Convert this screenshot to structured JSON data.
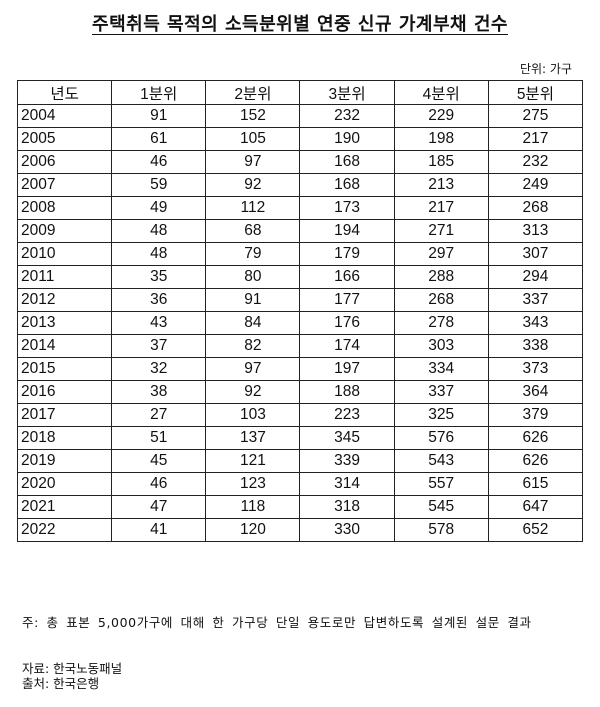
{
  "title": "주택취득 목적의 소득분위별 연중 신규 가계부채 건수",
  "unit": "단위: 가구",
  "table": {
    "headers": [
      "년도",
      "1분위",
      "2분위",
      "3분위",
      "4분위",
      "5분위"
    ],
    "rows": [
      [
        "2004",
        "91",
        "152",
        "232",
        "229",
        "275"
      ],
      [
        "2005",
        "61",
        "105",
        "190",
        "198",
        "217"
      ],
      [
        "2006",
        "46",
        "97",
        "168",
        "185",
        "232"
      ],
      [
        "2007",
        "59",
        "92",
        "168",
        "213",
        "249"
      ],
      [
        "2008",
        "49",
        "112",
        "173",
        "217",
        "268"
      ],
      [
        "2009",
        "48",
        "68",
        "194",
        "271",
        "313"
      ],
      [
        "2010",
        "48",
        "79",
        "179",
        "297",
        "307"
      ],
      [
        "2011",
        "35",
        "80",
        "166",
        "288",
        "294"
      ],
      [
        "2012",
        "36",
        "91",
        "177",
        "268",
        "337"
      ],
      [
        "2013",
        "43",
        "84",
        "176",
        "278",
        "343"
      ],
      [
        "2014",
        "37",
        "82",
        "174",
        "303",
        "338"
      ],
      [
        "2015",
        "32",
        "97",
        "197",
        "334",
        "373"
      ],
      [
        "2016",
        "38",
        "92",
        "188",
        "337",
        "364"
      ],
      [
        "2017",
        "27",
        "103",
        "223",
        "325",
        "379"
      ],
      [
        "2018",
        "51",
        "137",
        "345",
        "576",
        "626"
      ],
      [
        "2019",
        "45",
        "121",
        "339",
        "543",
        "626"
      ],
      [
        "2020",
        "46",
        "123",
        "314",
        "557",
        "615"
      ],
      [
        "2021",
        "47",
        "118",
        "318",
        "545",
        "647"
      ],
      [
        "2022",
        "41",
        "120",
        "330",
        "578",
        "652"
      ]
    ]
  },
  "note": "주: 총 표본 5,000가구에 대해 한 가구당 단일 용도로만 답변하도록 설계된 설문 결과",
  "source_data": "자료: 한국노동패널",
  "source_origin": "출처: 한국은행"
}
